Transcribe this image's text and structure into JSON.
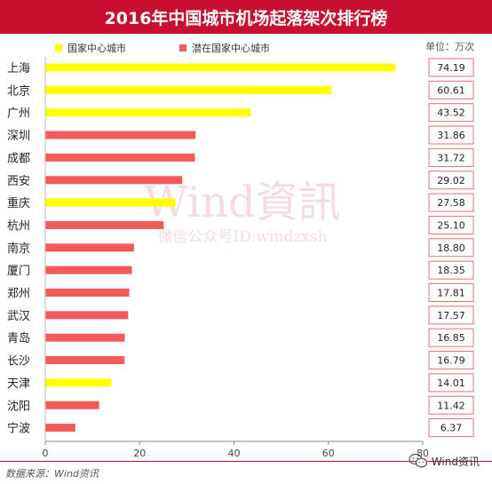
{
  "header": {
    "title": "2016年中国城市机场起落架次排行榜"
  },
  "unit_label": "单位：万次",
  "watermark": {
    "main": "Wind資訊",
    "sub": "微信公众号ID:windzxsh"
  },
  "footer": {
    "source": "数据来源：Wind资讯",
    "brand": "Wind资讯"
  },
  "colors": {
    "national": "#ffff00",
    "potential": "#f35a5a",
    "title_bg": "#c8102e",
    "value_box_border": "#e07070"
  },
  "icons": {
    "brand": "wechat-icon"
  },
  "chart_data": {
    "type": "bar",
    "orientation": "horizontal",
    "title": "2016年中国城市机场起落架次排行榜",
    "xlim": [
      0,
      80
    ],
    "xticks": [
      0,
      20,
      40,
      60,
      80
    ],
    "legend": [
      {
        "key": "national",
        "label": "国家中心城市"
      },
      {
        "key": "potential",
        "label": "潜在国家中心城市"
      }
    ],
    "legend_position": "top-left",
    "grid": false,
    "categories": [
      "上海",
      "北京",
      "广州",
      "深圳",
      "成都",
      "西安",
      "重庆",
      "杭州",
      "南京",
      "厦门",
      "郑州",
      "武汉",
      "青岛",
      "长沙",
      "天津",
      "沈阳",
      "宁波"
    ],
    "values": [
      74.19,
      60.61,
      43.52,
      31.86,
      31.72,
      29.02,
      27.58,
      25.1,
      18.8,
      18.35,
      17.81,
      17.57,
      16.85,
      16.79,
      14.01,
      11.42,
      6.37
    ],
    "value_labels": [
      "74.19",
      "60.61",
      "43.52",
      "31.86",
      "31.72",
      "29.02",
      "27.58",
      "25.10",
      "18.80",
      "18.35",
      "17.81",
      "17.57",
      "16.85",
      "16.79",
      "14.01",
      "11.42",
      "6.37"
    ],
    "groups": [
      "national",
      "national",
      "national",
      "potential",
      "potential",
      "potential",
      "national",
      "potential",
      "potential",
      "potential",
      "potential",
      "potential",
      "potential",
      "potential",
      "national",
      "potential",
      "potential"
    ]
  }
}
